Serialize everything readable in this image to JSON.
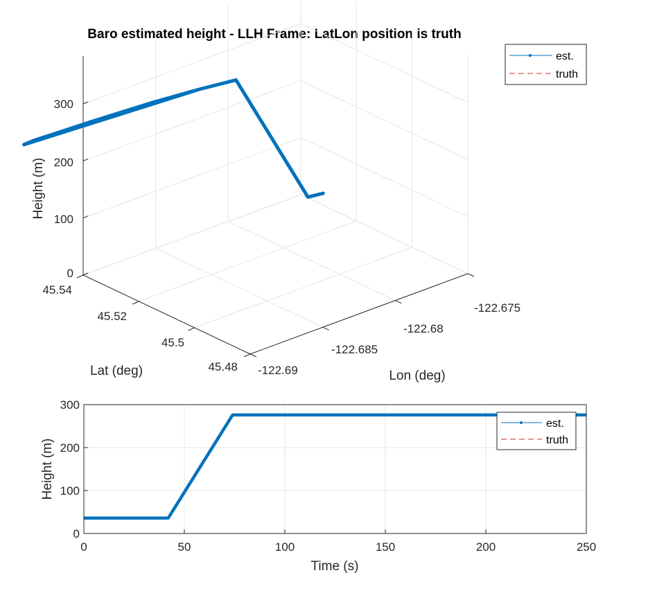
{
  "chart_data": [
    {
      "type": "line3d",
      "title": "Baro estimated height - LLH Frame: LatLon position is truth",
      "xlabel": "Lon (deg)",
      "ylabel": "Lat (deg)",
      "zlabel": "Height (m)",
      "xticks": [
        "-122.69",
        "-122.685",
        "-122.68",
        "-122.675"
      ],
      "yticks": [
        "45.54",
        "45.52",
        "45.5",
        "45.48"
      ],
      "zticks": [
        "0",
        "100",
        "200",
        "300"
      ],
      "xlim": [
        -122.69,
        -122.675
      ],
      "ylim": [
        45.48,
        45.54
      ],
      "zlim": [
        0,
        300
      ],
      "grid": true,
      "legend": {
        "location": "top-right",
        "entries": [
          "est.",
          "truth"
        ]
      },
      "series": [
        {
          "name": "est.",
          "color": "#0072BD",
          "style": "solid-with-point-markers",
          "points": [
            [
              -122.6757,
              45.5283,
              36
            ],
            [
              -122.6766,
              45.5291,
              36
            ],
            [
              -122.681,
              45.532,
              276
            ],
            [
              -122.6832,
              45.5338,
              276
            ],
            [
              -122.686,
              45.5355,
              276
            ],
            [
              -122.69,
              45.537,
              276
            ],
            [
              -122.6938,
              45.538,
              276
            ],
            [
              -122.6945,
              45.5378,
              276
            ],
            [
              -122.69,
              45.5362,
              276
            ],
            [
              -122.686,
              45.5348,
              276
            ],
            [
              -122.6832,
              45.5338,
              276
            ]
          ]
        },
        {
          "name": "truth",
          "color": "#D62728",
          "style": "dashed",
          "points": [
            [
              -122.6757,
              45.5283,
              36
            ],
            [
              -122.6766,
              45.5291,
              36
            ],
            [
              -122.681,
              45.532,
              276
            ],
            [
              -122.6832,
              45.5338,
              276
            ],
            [
              -122.686,
              45.5355,
              276
            ],
            [
              -122.69,
              45.537,
              276
            ],
            [
              -122.6938,
              45.538,
              276
            ],
            [
              -122.6945,
              45.5378,
              276
            ],
            [
              -122.69,
              45.5362,
              276
            ],
            [
              -122.686,
              45.5348,
              276
            ],
            [
              -122.6832,
              45.5338,
              276
            ]
          ]
        }
      ]
    },
    {
      "type": "line",
      "title": "",
      "xlabel": "Time (s)",
      "ylabel": "Height (m)",
      "xlim": [
        0,
        250
      ],
      "ylim": [
        0,
        300
      ],
      "xticks": [
        0,
        50,
        100,
        150,
        200,
        250
      ],
      "yticks": [
        0,
        100,
        200,
        300
      ],
      "grid": true,
      "legend": {
        "location": "top-right",
        "entries": [
          "est.",
          "truth"
        ]
      },
      "series": [
        {
          "name": "est.",
          "color": "#0072BD",
          "style": "solid-with-point-markers",
          "x": [
            0,
            42,
            74,
            250
          ],
          "y": [
            36,
            36,
            276,
            276
          ]
        },
        {
          "name": "truth",
          "color": "#D62728",
          "style": "dashed",
          "x": [
            0,
            42,
            74,
            250
          ],
          "y": [
            36,
            36,
            276,
            276
          ]
        }
      ]
    }
  ]
}
